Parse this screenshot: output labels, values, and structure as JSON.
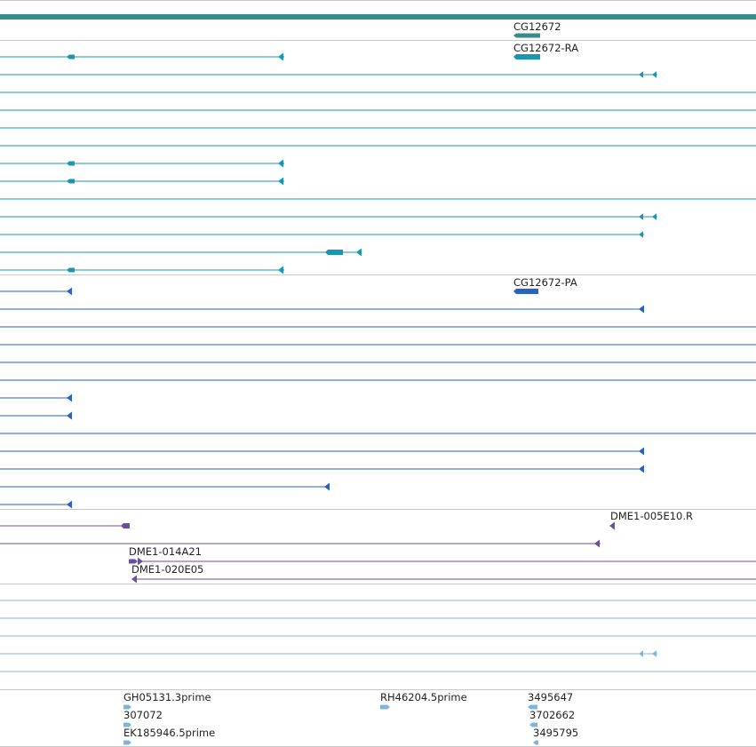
{
  "colors": {
    "gene": "#3a8c8c",
    "transcript_a": "#1996b4",
    "transcript_b": "#2a62c4",
    "clone": "#6a4ea0",
    "est": "#80b4dc",
    "separator": "#c8c8c8"
  },
  "tracks": [
    {
      "id": "gene",
      "color_key": "gene",
      "labels": [
        {
          "text": "CG12672",
          "align": "left"
        }
      ]
    },
    {
      "id": "transcript-a",
      "color_key": "transcript_a",
      "labels": [
        {
          "text": "CG12672-RA",
          "align": "left"
        }
      ]
    },
    {
      "id": "transcript-b",
      "color_key": "transcript_b",
      "labels": [
        {
          "text": "CG12672-PA",
          "align": "left"
        }
      ]
    },
    {
      "id": "clones",
      "color_key": "clone",
      "labels": [
        {
          "text": "DME1-005E10.R",
          "align": "left"
        },
        {
          "text": "DME1-014A21",
          "align": "left"
        },
        {
          "text": "DME1-020E05",
          "align": "left"
        }
      ]
    },
    {
      "id": "ests",
      "color_key": "est",
      "labels": [
        {
          "text": "GH05131.3prime",
          "align": "left"
        },
        {
          "text": "307072",
          "align": "left"
        },
        {
          "text": "EK185946.5prime",
          "align": "left"
        },
        {
          "text": "RH46204.5prime",
          "align": "left"
        },
        {
          "text": "3495647",
          "align": "left"
        },
        {
          "text": "3702662",
          "align": "left"
        },
        {
          "text": "3495795",
          "align": "left"
        }
      ]
    }
  ]
}
